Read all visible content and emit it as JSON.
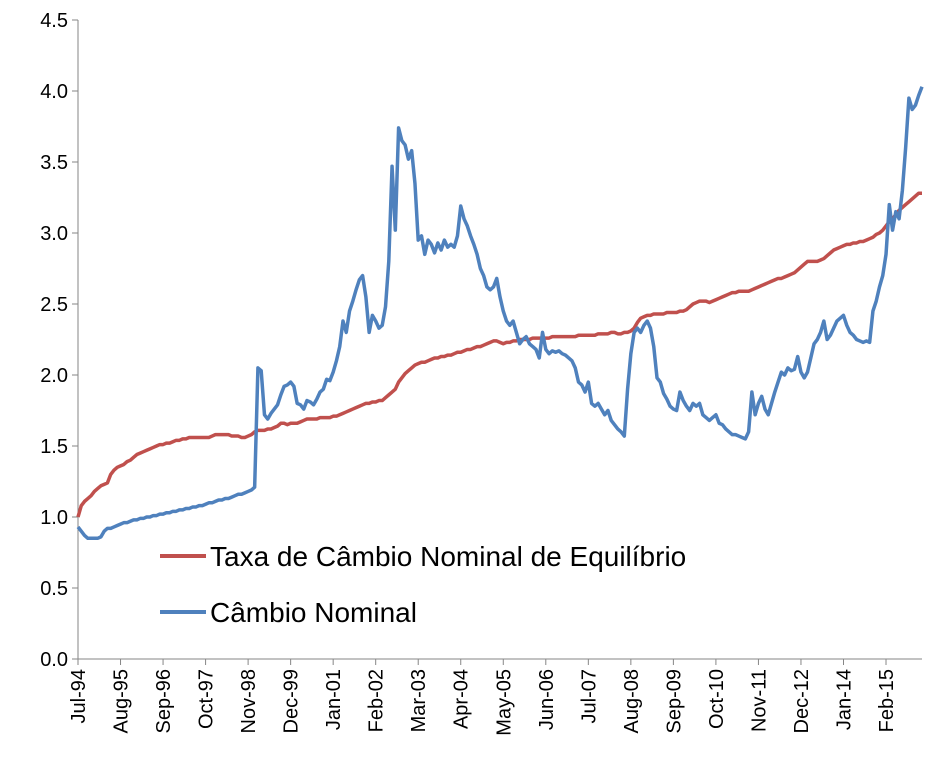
{
  "chart_data": {
    "type": "line",
    "categories": [
      "Jul-94",
      null,
      null,
      null,
      null,
      null,
      null,
      null,
      null,
      null,
      null,
      null,
      null,
      "Aug-95",
      null,
      null,
      null,
      null,
      null,
      null,
      null,
      null,
      null,
      null,
      null,
      null,
      "Sep-96",
      null,
      null,
      null,
      null,
      null,
      null,
      null,
      null,
      null,
      null,
      null,
      null,
      "Oct-97",
      null,
      null,
      null,
      null,
      null,
      null,
      null,
      null,
      null,
      null,
      null,
      null,
      "Nov-98",
      null,
      null,
      null,
      null,
      null,
      null,
      null,
      null,
      null,
      null,
      null,
      null,
      "Dec-99",
      null,
      null,
      null,
      null,
      null,
      null,
      null,
      null,
      null,
      null,
      null,
      null,
      "Jan-01",
      null,
      null,
      null,
      null,
      null,
      null,
      null,
      null,
      null,
      null,
      null,
      null,
      "Feb-02",
      null,
      null,
      null,
      null,
      null,
      null,
      null,
      null,
      null,
      null,
      null,
      null,
      "Mar-03",
      null,
      null,
      null,
      null,
      null,
      null,
      null,
      null,
      null,
      null,
      null,
      null,
      "Apr-04",
      null,
      null,
      null,
      null,
      null,
      null,
      null,
      null,
      null,
      null,
      null,
      null,
      "May-05",
      null,
      null,
      null,
      null,
      null,
      null,
      null,
      null,
      null,
      null,
      null,
      null,
      "Jun-06",
      null,
      null,
      null,
      null,
      null,
      null,
      null,
      null,
      null,
      null,
      null,
      null,
      "Jul-07",
      null,
      null,
      null,
      null,
      null,
      null,
      null,
      null,
      null,
      null,
      null,
      null,
      "Aug-08",
      null,
      null,
      null,
      null,
      null,
      null,
      null,
      null,
      null,
      null,
      null,
      null,
      "Sep-09",
      null,
      null,
      null,
      null,
      null,
      null,
      null,
      null,
      null,
      null,
      null,
      null,
      "Oct-10",
      null,
      null,
      null,
      null,
      null,
      null,
      null,
      null,
      null,
      null,
      null,
      null,
      "Nov-11",
      null,
      null,
      null,
      null,
      null,
      null,
      null,
      null,
      null,
      null,
      null,
      null,
      "Dec-12",
      null,
      null,
      null,
      null,
      null,
      null,
      null,
      null,
      null,
      null,
      null,
      null,
      "Jan-14",
      null,
      null,
      null,
      null,
      null,
      null,
      null,
      null,
      null,
      null,
      null,
      null,
      "Feb-15",
      null,
      null,
      null,
      null,
      null,
      null,
      null,
      null,
      null,
      null,
      null
    ],
    "series": [
      {
        "name": "Taxa de Câmbio Nominal de Equilíbrio",
        "color": "#c0504d",
        "values": [
          1.0,
          1.08,
          1.11,
          1.13,
          1.15,
          1.18,
          1.2,
          1.22,
          1.23,
          1.24,
          1.3,
          1.33,
          1.35,
          1.36,
          1.37,
          1.39,
          1.4,
          1.42,
          1.44,
          1.45,
          1.46,
          1.47,
          1.48,
          1.49,
          1.5,
          1.51,
          1.51,
          1.52,
          1.52,
          1.53,
          1.54,
          1.54,
          1.55,
          1.55,
          1.56,
          1.56,
          1.56,
          1.56,
          1.56,
          1.56,
          1.56,
          1.57,
          1.58,
          1.58,
          1.58,
          1.58,
          1.58,
          1.57,
          1.57,
          1.57,
          1.56,
          1.56,
          1.57,
          1.58,
          1.6,
          1.61,
          1.61,
          1.61,
          1.62,
          1.62,
          1.63,
          1.64,
          1.66,
          1.66,
          1.65,
          1.66,
          1.66,
          1.66,
          1.67,
          1.68,
          1.69,
          1.69,
          1.69,
          1.69,
          1.7,
          1.7,
          1.7,
          1.7,
          1.71,
          1.71,
          1.72,
          1.73,
          1.74,
          1.75,
          1.76,
          1.77,
          1.78,
          1.79,
          1.8,
          1.8,
          1.81,
          1.81,
          1.82,
          1.82,
          1.84,
          1.86,
          1.88,
          1.9,
          1.95,
          1.98,
          2.01,
          2.03,
          2.05,
          2.07,
          2.08,
          2.09,
          2.09,
          2.1,
          2.11,
          2.12,
          2.12,
          2.13,
          2.13,
          2.14,
          2.14,
          2.15,
          2.16,
          2.16,
          2.17,
          2.18,
          2.18,
          2.19,
          2.2,
          2.2,
          2.21,
          2.22,
          2.23,
          2.24,
          2.24,
          2.23,
          2.22,
          2.23,
          2.23,
          2.24,
          2.24,
          2.25,
          2.25,
          2.25,
          2.25,
          2.26,
          2.26,
          2.26,
          2.26,
          2.26,
          2.26,
          2.27,
          2.27,
          2.27,
          2.27,
          2.27,
          2.27,
          2.27,
          2.27,
          2.28,
          2.28,
          2.28,
          2.28,
          2.28,
          2.28,
          2.29,
          2.29,
          2.29,
          2.29,
          2.3,
          2.3,
          2.29,
          2.29,
          2.3,
          2.3,
          2.31,
          2.33,
          2.37,
          2.4,
          2.41,
          2.42,
          2.42,
          2.43,
          2.43,
          2.43,
          2.43,
          2.44,
          2.44,
          2.44,
          2.44,
          2.45,
          2.45,
          2.46,
          2.48,
          2.5,
          2.51,
          2.52,
          2.52,
          2.52,
          2.51,
          2.52,
          2.53,
          2.54,
          2.55,
          2.56,
          2.57,
          2.58,
          2.58,
          2.59,
          2.59,
          2.59,
          2.59,
          2.6,
          2.61,
          2.62,
          2.63,
          2.64,
          2.65,
          2.66,
          2.67,
          2.68,
          2.68,
          2.69,
          2.7,
          2.71,
          2.72,
          2.74,
          2.76,
          2.78,
          2.8,
          2.8,
          2.8,
          2.8,
          2.81,
          2.82,
          2.84,
          2.86,
          2.88,
          2.89,
          2.9,
          2.91,
          2.92,
          2.92,
          2.93,
          2.93,
          2.94,
          2.94,
          2.95,
          2.96,
          2.97,
          2.99,
          3.0,
          3.02,
          3.05,
          3.08,
          3.1,
          3.13,
          3.16,
          3.18,
          3.2,
          3.22,
          3.24,
          3.26,
          3.28,
          3.28
        ]
      },
      {
        "name": "Câmbio Nominal",
        "color": "#4f81bd",
        "values": [
          0.93,
          0.9,
          0.87,
          0.85,
          0.85,
          0.85,
          0.85,
          0.86,
          0.9,
          0.92,
          0.92,
          0.93,
          0.94,
          0.95,
          0.96,
          0.96,
          0.97,
          0.98,
          0.98,
          0.99,
          0.99,
          1.0,
          1.0,
          1.01,
          1.01,
          1.02,
          1.02,
          1.03,
          1.03,
          1.04,
          1.04,
          1.05,
          1.05,
          1.06,
          1.06,
          1.07,
          1.07,
          1.08,
          1.08,
          1.09,
          1.1,
          1.1,
          1.11,
          1.12,
          1.12,
          1.13,
          1.13,
          1.14,
          1.15,
          1.16,
          1.16,
          1.17,
          1.18,
          1.19,
          1.21,
          2.05,
          2.03,
          1.72,
          1.69,
          1.73,
          1.76,
          1.79,
          1.86,
          1.92,
          1.93,
          1.95,
          1.92,
          1.8,
          1.79,
          1.76,
          1.82,
          1.81,
          1.79,
          1.83,
          1.88,
          1.9,
          1.97,
          1.96,
          2.02,
          2.1,
          2.2,
          2.38,
          2.3,
          2.45,
          2.52,
          2.6,
          2.67,
          2.7,
          2.55,
          2.3,
          2.42,
          2.38,
          2.33,
          2.35,
          2.48,
          2.8,
          3.47,
          3.02,
          3.74,
          3.65,
          3.62,
          3.52,
          3.58,
          3.35,
          2.95,
          2.98,
          2.85,
          2.95,
          2.92,
          2.86,
          2.93,
          2.88,
          2.95,
          2.9,
          2.92,
          2.9,
          2.98,
          3.19,
          3.1,
          3.05,
          2.98,
          2.92,
          2.85,
          2.75,
          2.7,
          2.62,
          2.6,
          2.62,
          2.68,
          2.55,
          2.45,
          2.38,
          2.35,
          2.38,
          2.3,
          2.22,
          2.25,
          2.27,
          2.22,
          2.2,
          2.18,
          2.12,
          2.3,
          2.18,
          2.15,
          2.17,
          2.16,
          2.17,
          2.15,
          2.14,
          2.12,
          2.1,
          2.05,
          1.95,
          1.93,
          1.88,
          1.95,
          1.8,
          1.78,
          1.8,
          1.76,
          1.72,
          1.75,
          1.68,
          1.65,
          1.62,
          1.6,
          1.57,
          1.9,
          2.15,
          2.3,
          2.33,
          2.3,
          2.35,
          2.38,
          2.33,
          2.2,
          1.98,
          1.95,
          1.87,
          1.83,
          1.78,
          1.76,
          1.75,
          1.88,
          1.82,
          1.78,
          1.75,
          1.8,
          1.78,
          1.8,
          1.72,
          1.7,
          1.68,
          1.7,
          1.72,
          1.66,
          1.65,
          1.62,
          1.6,
          1.58,
          1.58,
          1.57,
          1.56,
          1.55,
          1.6,
          1.88,
          1.72,
          1.8,
          1.85,
          1.76,
          1.72,
          1.8,
          1.88,
          1.95,
          2.02,
          2.0,
          2.05,
          2.03,
          2.04,
          2.13,
          2.02,
          1.98,
          2.02,
          2.12,
          2.22,
          2.25,
          2.3,
          2.38,
          2.25,
          2.28,
          2.33,
          2.38,
          2.4,
          2.42,
          2.35,
          2.3,
          2.28,
          2.25,
          2.24,
          2.23,
          2.24,
          2.23,
          2.45,
          2.52,
          2.62,
          2.7,
          2.85,
          3.2,
          3.02,
          3.15,
          3.1,
          3.3,
          3.6,
          3.95,
          3.87,
          3.9,
          3.97,
          4.03
        ]
      }
    ],
    "ylim": [
      0,
      4.5
    ],
    "yticks": [
      {
        "value": 0,
        "label": "0.0"
      },
      0.5,
      {
        "value": 1,
        "label": "1.0"
      },
      1.5,
      {
        "value": 2,
        "label": "2.0"
      },
      2.5,
      {
        "value": 3,
        "label": "3.0"
      },
      3.5,
      {
        "value": 4,
        "label": "4.0"
      },
      4.5
    ],
    "grid": false,
    "legend": "lower-left"
  }
}
